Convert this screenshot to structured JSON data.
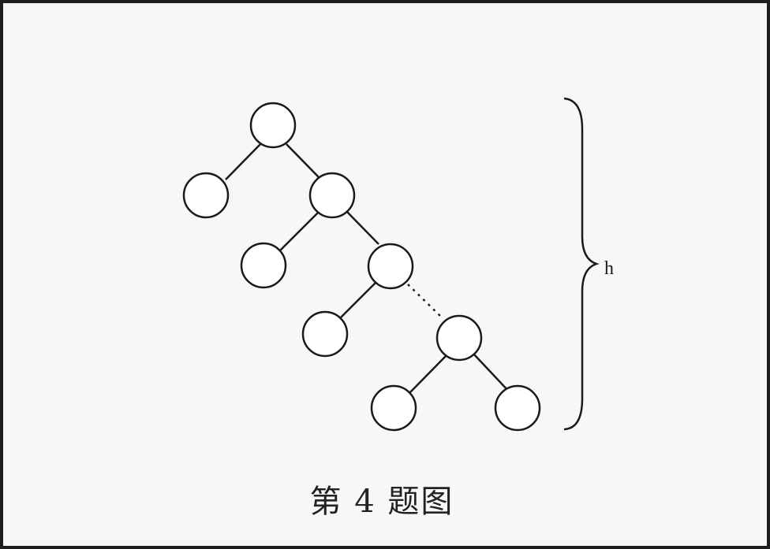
{
  "figure": {
    "height_label": "h",
    "caption": "第 4 题图"
  }
}
